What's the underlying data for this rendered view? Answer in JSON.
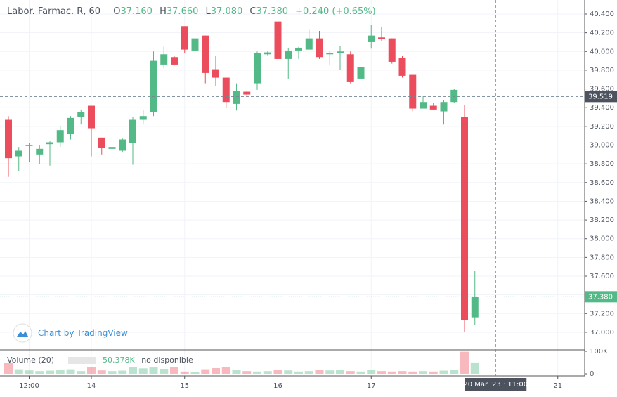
{
  "header": {
    "symbol": "Labor. Farmac. R, 60",
    "open_key": "O",
    "open": "37.160",
    "high_key": "H",
    "high": "37.660",
    "low_key": "L",
    "low": "37.080",
    "close_key": "C",
    "close": "37.380",
    "change": "+0.240 (+0.65%)"
  },
  "watermark": "Chart by TradingView",
  "chart_data": {
    "type": "candlestick",
    "categories": [
      null,
      null,
      "12:00",
      null,
      null,
      null,
      null,
      null,
      "14",
      null,
      null,
      null,
      null,
      null,
      null,
      null,
      null,
      "15",
      null,
      null,
      null,
      null,
      null,
      null,
      null,
      null,
      "16",
      null,
      null,
      null,
      null,
      null,
      null,
      null,
      null,
      "17",
      null,
      null,
      null,
      null,
      null,
      null,
      null,
      null,
      null,
      null,
      null,
      "20 Mar '23 · 11:00",
      null,
      null,
      null,
      null,
      null,
      "21"
    ],
    "open": [
      39.27,
      38.88,
      38.99,
      38.9,
      39.01,
      39.03,
      39.12,
      39.3,
      39.42,
      39.08,
      38.96,
      38.94,
      39.02,
      39.27,
      39.35,
      39.86,
      39.94,
      40.27,
      40.01,
      40.17,
      39.81,
      39.72,
      39.44,
      39.57,
      39.66,
      39.97,
      40.32,
      39.92,
      40.01,
      40.02,
      40.14,
      39.97,
      39.98,
      39.97,
      39.71,
      40.1,
      40.15,
      40.14,
      39.93,
      39.75,
      39.39,
      39.42,
      39.36,
      39.46,
      39.3,
      37.16,
      null,
      null,
      null,
      null,
      null,
      null,
      null,
      null
    ],
    "high": [
      39.31,
      38.98,
      39.02,
      39.0,
      39.04,
      39.2,
      39.31,
      39.38,
      39.42,
      39.08,
      39.0,
      39.07,
      39.3,
      39.38,
      40.0,
      40.05,
      39.95,
      40.27,
      40.18,
      40.17,
      39.95,
      39.72,
      39.66,
      39.58,
      40.0,
      40.0,
      40.32,
      40.04,
      40.05,
      40.24,
      40.22,
      40.0,
      40.06,
      40.0,
      39.84,
      40.28,
      40.26,
      40.14,
      39.95,
      39.75,
      39.52,
      39.45,
      39.48,
      39.6,
      39.43,
      37.66,
      null,
      null,
      null,
      null,
      null,
      null,
      null,
      null
    ],
    "low": [
      38.66,
      38.72,
      38.82,
      38.8,
      38.78,
      38.98,
      39.06,
      39.22,
      38.88,
      38.9,
      38.94,
      38.92,
      38.79,
      39.22,
      39.31,
      39.82,
      39.85,
      39.98,
      39.93,
      39.66,
      39.63,
      39.4,
      39.37,
      39.53,
      39.59,
      39.96,
      39.89,
      39.71,
      39.92,
      40.02,
      39.92,
      39.86,
      39.8,
      39.66,
      39.55,
      40.03,
      40.11,
      39.87,
      39.72,
      39.36,
      39.39,
      39.38,
      39.22,
      39.45,
      37.0,
      37.08,
      null,
      null,
      null,
      null,
      null,
      null,
      null,
      null
    ],
    "close": [
      38.86,
      38.94,
      39.0,
      38.96,
      39.03,
      39.16,
      39.29,
      39.35,
      39.18,
      38.97,
      38.98,
      39.06,
      39.27,
      39.31,
      39.9,
      39.97,
      39.86,
      40.02,
      40.14,
      39.77,
      39.72,
      39.46,
      39.58,
      39.54,
      39.98,
      39.99,
      39.92,
      40.01,
      40.04,
      40.14,
      39.94,
      39.98,
      40.0,
      39.68,
      39.83,
      40.17,
      40.13,
      39.89,
      39.74,
      39.39,
      39.46,
      39.38,
      39.46,
      39.59,
      37.13,
      37.38,
      null,
      null,
      null,
      null,
      null,
      null,
      null,
      null
    ],
    "up_color": "#53b987",
    "down_color": "#eb4d5c",
    "ylim": [
      36.812,
      40.55
    ],
    "yticks": [
      {
        "value": 37.0,
        "label": "37.000"
      },
      {
        "value": 37.2,
        "label": "37.200"
      },
      {
        "value": 37.4,
        "label": "37.400"
      },
      {
        "value": 37.6,
        "label": "37.600"
      },
      {
        "value": 37.8,
        "label": "37.800"
      },
      {
        "value": 38.0,
        "label": "38.000"
      },
      {
        "value": 38.2,
        "label": "38.200"
      },
      {
        "value": 38.4,
        "label": "38.400"
      },
      {
        "value": 38.6,
        "label": "38.600"
      },
      {
        "value": 38.8,
        "label": "38.800"
      },
      {
        "value": 39.0,
        "label": "39.000"
      },
      {
        "value": 39.2,
        "label": "39.200"
      },
      {
        "value": 39.4,
        "label": "39.400"
      },
      {
        "value": 39.6,
        "label": "39.600"
      },
      {
        "value": 39.8,
        "label": "39.800"
      },
      {
        "value": 40.0,
        "label": "40.000"
      },
      {
        "value": 40.2,
        "label": "40.200"
      },
      {
        "value": 40.4,
        "label": "40.400"
      }
    ],
    "grid": true,
    "last_price": {
      "value": 37.38,
      "label": "37.380"
    },
    "crosshair_price": {
      "value": 39.519,
      "label": "39.519"
    },
    "volume": {
      "name": "Volume (20)",
      "last_label": "50.378K",
      "status": "no disponible",
      "values": [
        47000,
        20000,
        15000,
        12000,
        14000,
        18000,
        20000,
        12000,
        30000,
        15000,
        12000,
        14000,
        30000,
        24000,
        28000,
        22000,
        30000,
        10000,
        8000,
        20000,
        25000,
        28000,
        18000,
        12000,
        10000,
        12000,
        18000,
        15000,
        10000,
        12000,
        18000,
        15000,
        18000,
        12000,
        10000,
        18000,
        12000,
        10000,
        12000,
        10000,
        12000,
        10000,
        14000,
        18000,
        98000,
        50378,
        null,
        null,
        null,
        null,
        null,
        null,
        null,
        null
      ],
      "ylim": [
        0,
        100000
      ],
      "yticks": [
        {
          "value": 100000,
          "label": "100K"
        },
        0
      ]
    }
  }
}
